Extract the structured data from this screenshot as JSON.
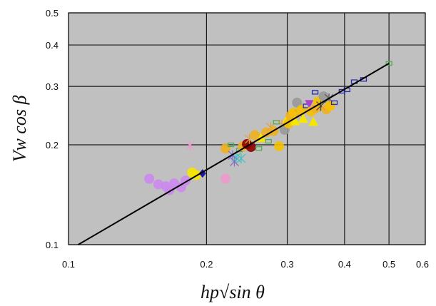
{
  "chart_data": {
    "type": "scatter",
    "title": "",
    "xlabel": "hp√sin θ",
    "ylabel": "Vw cos β",
    "x_scale": "log",
    "y_scale": "log",
    "xlim": [
      0.1,
      0.6
    ],
    "ylim": [
      0.1,
      0.5
    ],
    "x_ticks": [
      0.1,
      0.2,
      0.3,
      0.4,
      0.5,
      0.6
    ],
    "x_tick_labels": [
      "0.1",
      "0.2",
      "0.3",
      "0.4",
      "0.5",
      "0.6"
    ],
    "y_ticks": [
      0.1,
      0.2,
      0.3,
      0.4,
      0.5
    ],
    "y_tick_labels": [
      "0.1",
      "0.2",
      "0.3",
      "0.4",
      "0.5"
    ],
    "grid": true,
    "legend": "none",
    "plot_background": "#c0c0c0",
    "grid_color": "#1a1a1a",
    "fit_line": {
      "x": [
        0.105,
        0.5
      ],
      "y": [
        0.1,
        0.352
      ],
      "color": "#000000"
    },
    "points": [
      {
        "x": 0.15,
        "y": 0.158,
        "marker": "circle",
        "color": "#cc88ee"
      },
      {
        "x": 0.157,
        "y": 0.152,
        "marker": "circle",
        "color": "#cc88ee"
      },
      {
        "x": 0.163,
        "y": 0.15,
        "marker": "circle",
        "color": "#cc88ee"
      },
      {
        "x": 0.166,
        "y": 0.146,
        "marker": "circle",
        "color": "#cc88ee"
      },
      {
        "x": 0.17,
        "y": 0.153,
        "marker": "circle",
        "color": "#cc88ee"
      },
      {
        "x": 0.176,
        "y": 0.149,
        "marker": "circle",
        "color": "#cc88ee"
      },
      {
        "x": 0.18,
        "y": 0.156,
        "marker": "circle",
        "color": "#cc88ee"
      },
      {
        "x": 0.186,
        "y": 0.165,
        "marker": "circle",
        "color": "#f5e600"
      },
      {
        "x": 0.19,
        "y": 0.162,
        "marker": "circle",
        "color": "#f5e600"
      },
      {
        "x": 0.196,
        "y": 0.164,
        "marker": "diamond",
        "color": "#1a1aa0"
      },
      {
        "x": 0.184,
        "y": 0.199,
        "marker": "cross",
        "color": "#ee99cc"
      },
      {
        "x": 0.22,
        "y": 0.158,
        "marker": "circle",
        "color": "#ee99cc"
      },
      {
        "x": 0.22,
        "y": 0.195,
        "marker": "circle",
        "color": "#f0b020"
      },
      {
        "x": 0.226,
        "y": 0.2,
        "marker": "square",
        "color": "#4caf50"
      },
      {
        "x": 0.228,
        "y": 0.186,
        "marker": "cross",
        "color": "#8866cc"
      },
      {
        "x": 0.23,
        "y": 0.178,
        "marker": "cross",
        "color": "#8866cc"
      },
      {
        "x": 0.232,
        "y": 0.183,
        "marker": "cross",
        "color": "#40c0c0"
      },
      {
        "x": 0.236,
        "y": 0.193,
        "marker": "square",
        "color": "#4caf50"
      },
      {
        "x": 0.238,
        "y": 0.182,
        "marker": "cross",
        "color": "#40c0c0"
      },
      {
        "x": 0.24,
        "y": 0.198,
        "marker": "circle",
        "color": "#f0b020"
      },
      {
        "x": 0.245,
        "y": 0.201,
        "marker": "circle",
        "color": "#8b0000"
      },
      {
        "x": 0.25,
        "y": 0.197,
        "marker": "circle",
        "color": "#8b0000"
      },
      {
        "x": 0.248,
        "y": 0.208,
        "marker": "cross",
        "color": "#e0a040"
      },
      {
        "x": 0.255,
        "y": 0.214,
        "marker": "circle",
        "color": "#f0b020"
      },
      {
        "x": 0.26,
        "y": 0.195,
        "marker": "square",
        "color": "#4caf50"
      },
      {
        "x": 0.263,
        "y": 0.21,
        "marker": "triangle",
        "color": "#f5e600"
      },
      {
        "x": 0.27,
        "y": 0.218,
        "marker": "circle",
        "color": "#f0b020"
      },
      {
        "x": 0.273,
        "y": 0.205,
        "marker": "square",
        "color": "#4caf50"
      },
      {
        "x": 0.276,
        "y": 0.226,
        "marker": "cross",
        "color": "#e0a040"
      },
      {
        "x": 0.28,
        "y": 0.22,
        "marker": "circle",
        "color": "#f0b020"
      },
      {
        "x": 0.284,
        "y": 0.234,
        "marker": "square",
        "color": "#4caf50"
      },
      {
        "x": 0.288,
        "y": 0.198,
        "marker": "circle",
        "color": "#f5c000"
      },
      {
        "x": 0.292,
        "y": 0.23,
        "marker": "cross",
        "color": "#e0a040"
      },
      {
        "x": 0.296,
        "y": 0.222,
        "marker": "circle",
        "color": "#999999"
      },
      {
        "x": 0.3,
        "y": 0.24,
        "marker": "triangle",
        "color": "#f5e600"
      },
      {
        "x": 0.302,
        "y": 0.232,
        "marker": "circle",
        "color": "#f5c000"
      },
      {
        "x": 0.305,
        "y": 0.245,
        "marker": "circle",
        "color": "#f0b020"
      },
      {
        "x": 0.31,
        "y": 0.25,
        "marker": "circle",
        "color": "#f5c000"
      },
      {
        "x": 0.312,
        "y": 0.236,
        "marker": "triangle",
        "color": "#f5e600"
      },
      {
        "x": 0.315,
        "y": 0.268,
        "marker": "circle",
        "color": "#999999"
      },
      {
        "x": 0.318,
        "y": 0.248,
        "marker": "cross",
        "color": "#e0a040"
      },
      {
        "x": 0.322,
        "y": 0.255,
        "marker": "circle",
        "color": "#f5c000"
      },
      {
        "x": 0.325,
        "y": 0.24,
        "marker": "triangle",
        "color": "#f5e600"
      },
      {
        "x": 0.33,
        "y": 0.262,
        "marker": "square",
        "color": "#2a2aaa"
      },
      {
        "x": 0.335,
        "y": 0.265,
        "marker": "triangle-down",
        "color": "#aa44cc"
      },
      {
        "x": 0.338,
        "y": 0.252,
        "marker": "circle",
        "color": "#f5c000"
      },
      {
        "x": 0.342,
        "y": 0.235,
        "marker": "triangle",
        "color": "#f5e600"
      },
      {
        "x": 0.346,
        "y": 0.258,
        "marker": "circle",
        "color": "#f0b020"
      },
      {
        "x": 0.35,
        "y": 0.27,
        "marker": "circle",
        "color": "#f5c000"
      },
      {
        "x": 0.345,
        "y": 0.288,
        "marker": "square",
        "color": "#2a2aaa"
      },
      {
        "x": 0.355,
        "y": 0.262,
        "marker": "cross",
        "color": "#444444"
      },
      {
        "x": 0.36,
        "y": 0.28,
        "marker": "circle",
        "color": "#999999"
      },
      {
        "x": 0.365,
        "y": 0.256,
        "marker": "circle",
        "color": "#f0b020"
      },
      {
        "x": 0.37,
        "y": 0.276,
        "marker": "cross",
        "color": "#555555"
      },
      {
        "x": 0.372,
        "y": 0.262,
        "marker": "circle",
        "color": "#f5c000"
      },
      {
        "x": 0.38,
        "y": 0.268,
        "marker": "square",
        "color": "#2a2aaa"
      },
      {
        "x": 0.395,
        "y": 0.29,
        "marker": "square",
        "color": "#2a2aaa"
      },
      {
        "x": 0.405,
        "y": 0.293,
        "marker": "square",
        "color": "#2a2aaa"
      },
      {
        "x": 0.42,
        "y": 0.31,
        "marker": "square",
        "color": "#2a2aaa"
      },
      {
        "x": 0.44,
        "y": 0.315,
        "marker": "square",
        "color": "#2a2aaa"
      },
      {
        "x": 0.5,
        "y": 0.352,
        "marker": "square",
        "color": "#4caf50"
      }
    ]
  }
}
